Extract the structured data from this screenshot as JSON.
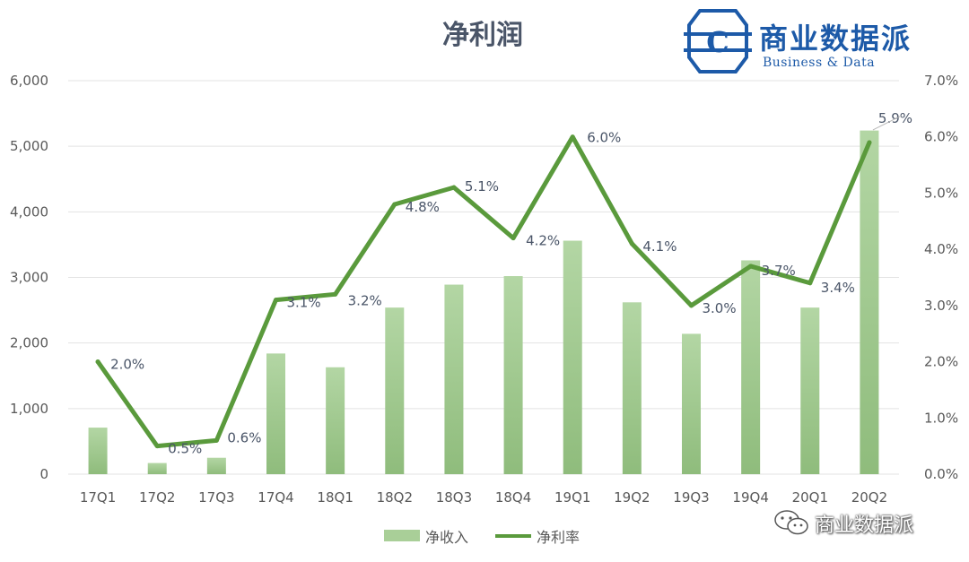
{
  "title": "净利润",
  "logo": {
    "name": "商业数据派",
    "subtitle": "Business & Data",
    "letter": "C"
  },
  "watermark": {
    "text": "商业数据派",
    "icon": "wechat-icon"
  },
  "legend": {
    "bar_label": "净收入",
    "line_label": "净利率"
  },
  "colors": {
    "bar": "#a9cf98",
    "bar_bottom": "#8fbc7c",
    "line": "#5a9a3c",
    "axis_text": "#595959",
    "grid": "#e3e3e3",
    "logo": "#1d5aa8"
  },
  "chart_data": {
    "type": "bar",
    "title": "净利润",
    "categories": [
      "17Q1",
      "17Q2",
      "17Q3",
      "17Q4",
      "18Q1",
      "18Q2",
      "18Q3",
      "18Q4",
      "19Q1",
      "19Q2",
      "19Q3",
      "19Q4",
      "20Q1",
      "20Q2"
    ],
    "series": [
      {
        "name": "净收入",
        "type": "bar",
        "axis": "left",
        "values": [
          710,
          170,
          250,
          1840,
          1630,
          2540,
          2890,
          3020,
          3560,
          2620,
          2140,
          3260,
          2540,
          5240
        ]
      },
      {
        "name": "净利率",
        "type": "line",
        "axis": "right",
        "values": [
          2.0,
          0.5,
          0.6,
          3.1,
          3.2,
          4.8,
          5.1,
          4.2,
          6.0,
          4.1,
          3.0,
          3.7,
          3.4,
          5.9
        ],
        "labels": [
          "2.0%",
          "0.5%",
          "0.6%",
          "3.1%",
          "3.2%",
          "4.8%",
          "5.1%",
          "4.2%",
          "6.0%",
          "4.1%",
          "3.0%",
          "3.7%",
          "3.4%",
          "5.9%"
        ]
      }
    ],
    "y_left": {
      "ylim": [
        0,
        6000
      ],
      "ticks": [
        0,
        1000,
        2000,
        3000,
        4000,
        5000,
        6000
      ],
      "tick_labels": [
        "0",
        "1,000",
        "2,000",
        "3,000",
        "4,000",
        "5,000",
        "6,000"
      ]
    },
    "y_right": {
      "ylim": [
        0,
        7
      ],
      "ticks": [
        0,
        1,
        2,
        3,
        4,
        5,
        6,
        7
      ],
      "tick_labels": [
        "0.0%",
        "1.0%",
        "2.0%",
        "3.0%",
        "4.0%",
        "5.0%",
        "6.0%",
        "7.0%"
      ]
    },
    "grid": true,
    "legend_position": "bottom"
  }
}
